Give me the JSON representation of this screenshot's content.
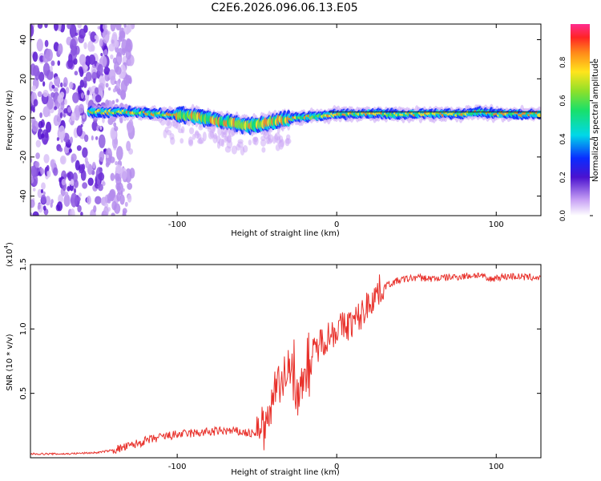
{
  "title": "C2E6.2026.096.06.13.E05",
  "chart_data": [
    {
      "type": "heatmap",
      "name": "spectrogram",
      "xlabel": "Height of straight line (km)",
      "ylabel": "Frequency (Hz)",
      "xlim": [
        -192,
        128
      ],
      "ylim": [
        -50,
        48
      ],
      "xticks": [
        -100,
        0,
        100
      ],
      "yticks": [
        -40,
        -20,
        0,
        20,
        40
      ],
      "colorbar": {
        "label": "Normalized spectral amplitude",
        "range": [
          0,
          1
        ],
        "ticks": [
          0.0,
          0.2,
          0.4,
          0.6,
          0.8
        ]
      },
      "ridge": {
        "description": "frequency track of the signal (Hz) versus height (km)",
        "x": [
          -155,
          -130,
          -110,
          -90,
          -70,
          -55,
          -45,
          -35,
          -25,
          -10,
          0,
          20,
          40,
          60,
          80,
          90,
          100,
          128
        ],
        "freq": [
          3,
          3,
          2,
          1,
          -2,
          -4,
          -3,
          -1,
          0,
          1,
          2,
          2,
          2,
          2,
          2,
          3,
          2,
          2
        ]
      },
      "noise_region_x": [
        -192,
        -128
      ]
    },
    {
      "type": "line",
      "name": "snr",
      "xlabel": "Height of straight line (km)",
      "ylabel": "SNR (10 * v/v)",
      "yscale_label": "(x10",
      "yscale_exp": "4",
      "yscale_close": ")",
      "xlim": [
        -192,
        128
      ],
      "ylim": [
        0,
        1.5
      ],
      "xticks": [
        -100,
        0,
        100
      ],
      "yticks": [
        0.5,
        1.0,
        1.5
      ],
      "series": [
        {
          "name": "SNR",
          "color": "#e8302a",
          "x": [
            -192,
            -170,
            -150,
            -140,
            -130,
            -120,
            -110,
            -100,
            -90,
            -80,
            -70,
            -60,
            -50,
            -45,
            -42,
            -38,
            -35,
            -32,
            -30,
            -28,
            -25,
            -22,
            -20,
            -15,
            -10,
            -5,
            0,
            5,
            10,
            15,
            20,
            25,
            30,
            35,
            40,
            50,
            60,
            70,
            80,
            90,
            95,
            100,
            110,
            120,
            128
          ],
          "y": [
            0.03,
            0.03,
            0.04,
            0.06,
            0.09,
            0.13,
            0.16,
            0.18,
            0.19,
            0.2,
            0.21,
            0.2,
            0.18,
            0.22,
            0.4,
            0.65,
            0.6,
            0.5,
            0.85,
            0.7,
            0.55,
            0.6,
            0.7,
            0.8,
            0.9,
            0.95,
            1.0,
            1.02,
            1.05,
            1.1,
            1.2,
            1.28,
            1.33,
            1.36,
            1.38,
            1.4,
            1.39,
            1.4,
            1.41,
            1.42,
            1.38,
            1.4,
            1.41,
            1.4,
            1.4
          ]
        }
      ]
    }
  ]
}
